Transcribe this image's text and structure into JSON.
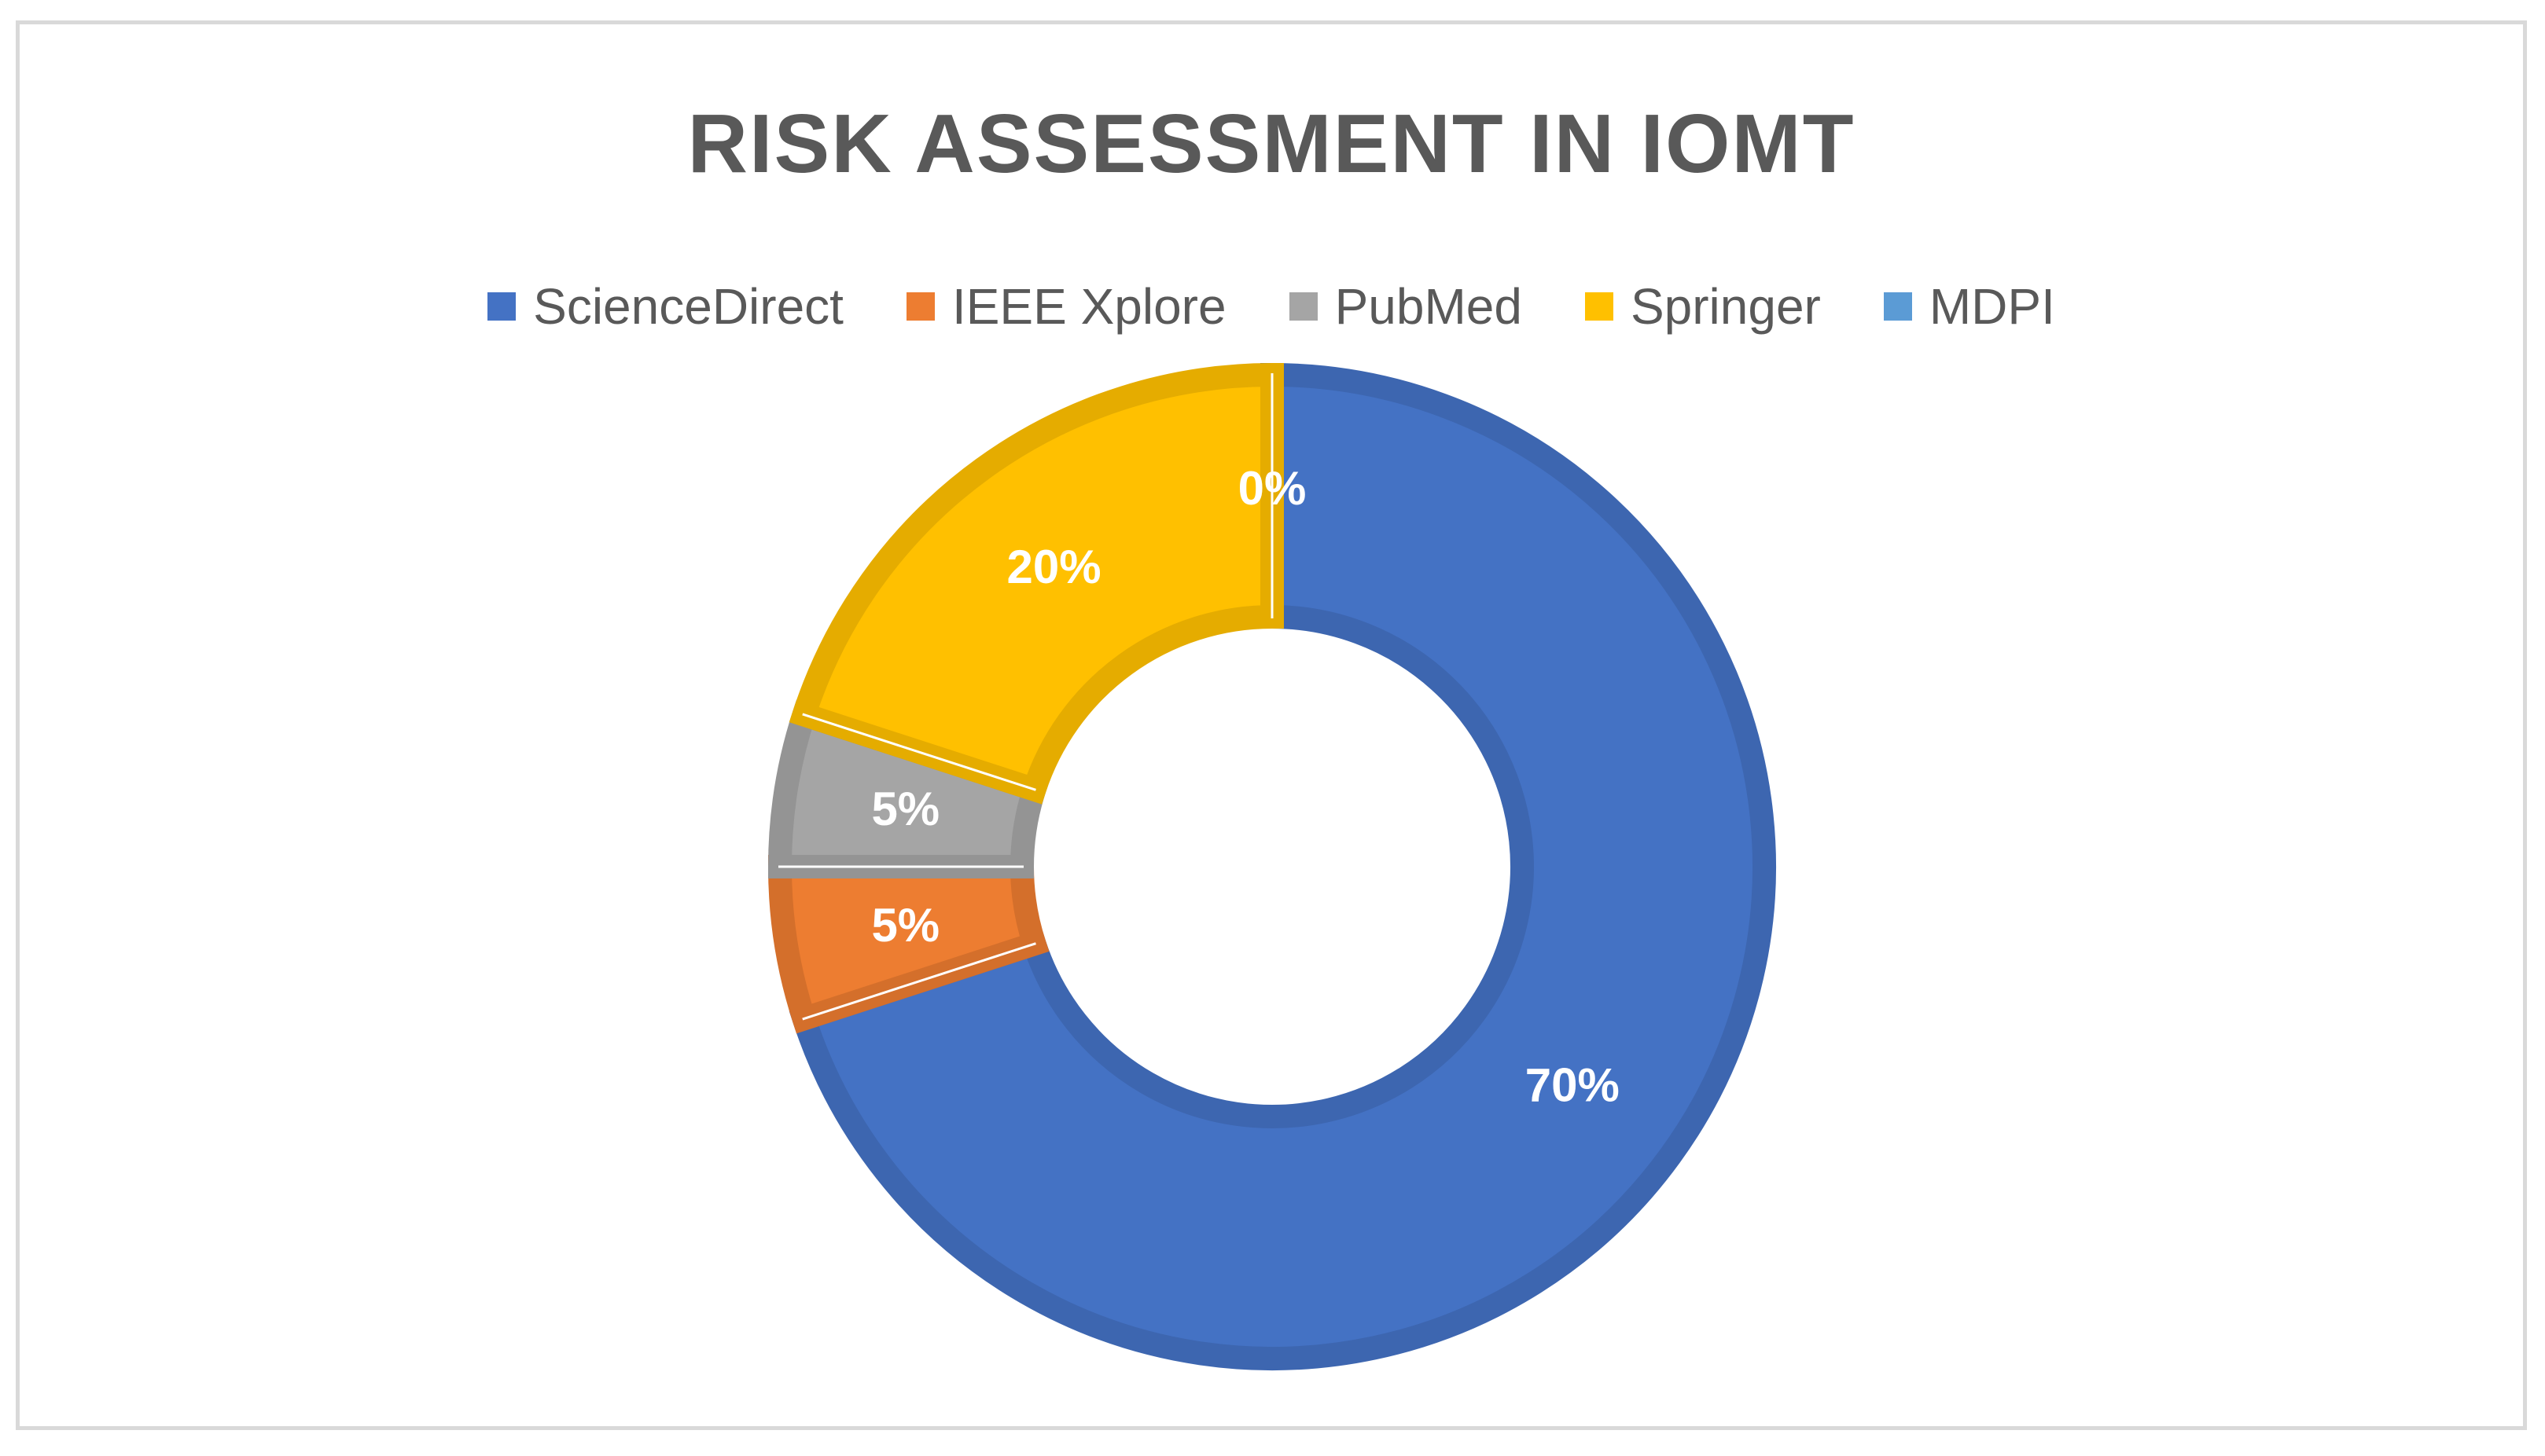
{
  "chart_data": {
    "type": "pie",
    "variant": "donut",
    "title": "RISK ASSESSMENT IN IOMT",
    "legend_position": "top",
    "categories": [
      "ScienceDirect",
      "IEEE Xplore",
      "PubMed",
      "Springer",
      "MDPI"
    ],
    "values": [
      70,
      5,
      5,
      20,
      0
    ],
    "labels": [
      "70%",
      "5%",
      "5%",
      "20%",
      "0%"
    ],
    "colors": [
      "#4472c4",
      "#ed7d31",
      "#a5a5a5",
      "#ffc000",
      "#5b9bd5"
    ],
    "border_colors": [
      "#3d66b0",
      "#d46f2b",
      "#949494",
      "#e5ac00",
      "#5189bf"
    ]
  }
}
